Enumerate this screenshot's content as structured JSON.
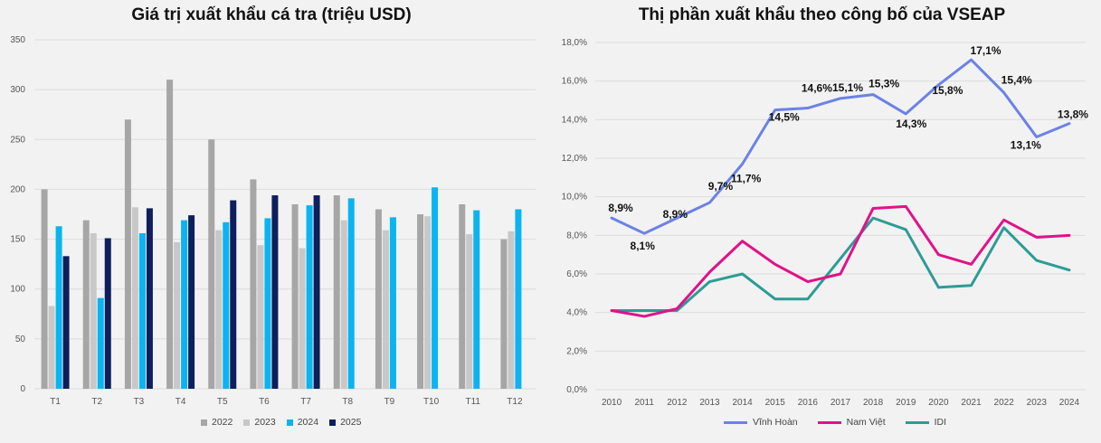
{
  "chart_data": [
    {
      "type": "bar",
      "title": "Giá trị xuất khẩu cá tra (triệu USD)",
      "ylim": [
        0,
        350
      ],
      "yticks": [
        0,
        50,
        100,
        150,
        200,
        250,
        300,
        350
      ],
      "categories": [
        "T1",
        "T2",
        "T3",
        "T4",
        "T5",
        "T6",
        "T7",
        "T8",
        "T9",
        "T10",
        "T11",
        "T12"
      ],
      "legend_position": "bottom",
      "series": [
        {
          "name": "2022",
          "color": "#a6a6a6",
          "values": [
            200,
            169,
            270,
            310,
            250,
            210,
            185,
            194,
            180,
            175,
            185,
            150
          ]
        },
        {
          "name": "2023",
          "color": "#c8c8c8",
          "values": [
            83,
            156,
            182,
            147,
            159,
            144,
            141,
            169,
            159,
            173,
            155,
            158
          ]
        },
        {
          "name": "2024",
          "color": "#0ab4f0",
          "values": [
            163,
            91,
            156,
            169,
            167,
            171,
            184,
            191,
            172,
            202,
            179,
            180
          ]
        },
        {
          "name": "2025",
          "color": "#0d1f5c",
          "values": [
            133,
            151,
            181,
            174,
            189,
            194,
            194,
            null,
            null,
            null,
            null,
            null
          ]
        }
      ]
    },
    {
      "type": "line",
      "title": "Thị phần xuất khẩu theo công bố của VSEAP",
      "x": [
        "2010",
        "2011",
        "2012",
        "2013",
        "2014",
        "2015",
        "2016",
        "2017",
        "2018",
        "2019",
        "2020",
        "2021",
        "2022",
        "2023",
        "2024"
      ],
      "ylim": [
        0,
        18
      ],
      "yticks": [
        "0,0%",
        "2,0%",
        "4,0%",
        "6,0%",
        "8,0%",
        "10,0%",
        "12,0%",
        "14,0%",
        "16,0%",
        "18,0%"
      ],
      "legend_position": "bottom",
      "series": [
        {
          "name": "Vĩnh Hoàn",
          "color": "#6b82e6",
          "values": [
            8.9,
            8.1,
            8.9,
            9.7,
            11.7,
            14.5,
            14.6,
            15.1,
            15.3,
            14.3,
            15.8,
            17.1,
            15.4,
            13.1,
            13.8
          ],
          "labels": [
            "8,9%",
            "8,1%",
            "8,9%",
            "9,7%",
            "11,7%",
            "14,5%",
            "14,6%",
            "15,1%",
            "15,3%",
            "14,3%",
            "15,8%",
            "17,1%",
            "15,4%",
            "13,1%",
            "13,8%"
          ]
        },
        {
          "name": "Nam Việt",
          "color": "#e0128a",
          "values": [
            4.1,
            3.8,
            4.2,
            6.1,
            7.7,
            6.5,
            5.6,
            6.0,
            9.4,
            9.5,
            7.0,
            6.5,
            8.8,
            7.9,
            8.0
          ]
        },
        {
          "name": "IDI",
          "color": "#2e9b96",
          "values": [
            4.1,
            4.1,
            4.1,
            5.6,
            6.0,
            4.7,
            4.7,
            6.8,
            8.9,
            8.3,
            5.3,
            5.4,
            8.4,
            6.7,
            6.2
          ]
        }
      ]
    }
  ]
}
